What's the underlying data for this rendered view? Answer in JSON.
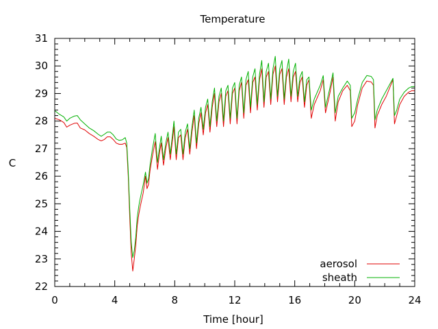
{
  "chart_data": {
    "type": "line",
    "title": "Temperature",
    "xlabel": "Time [hour]",
    "ylabel": "C",
    "xlim": [
      0,
      24
    ],
    "ylim": [
      22,
      31
    ],
    "x_ticks": [
      0,
      4,
      8,
      12,
      16,
      20,
      24
    ],
    "x_tick_labels": [
      "0",
      "4",
      "8",
      "12",
      "16",
      "20",
      "24"
    ],
    "y_ticks": [
      22,
      23,
      24,
      25,
      26,
      27,
      28,
      29,
      30,
      31
    ],
    "y_tick_labels": [
      "22",
      "23",
      "24",
      "25",
      "26",
      "27",
      "28",
      "29",
      "30",
      "31"
    ],
    "grid": false,
    "legend_position": "bottom-right",
    "series": [
      {
        "name": "aerosol",
        "color": "#e00000",
        "points": [
          [
            0.0,
            28.1
          ],
          [
            0.3,
            28.05
          ],
          [
            0.6,
            27.95
          ],
          [
            0.8,
            27.78
          ],
          [
            1.0,
            27.85
          ],
          [
            1.3,
            27.92
          ],
          [
            1.5,
            27.93
          ],
          [
            1.7,
            27.75
          ],
          [
            2.0,
            27.68
          ],
          [
            2.3,
            27.55
          ],
          [
            2.6,
            27.45
          ],
          [
            2.9,
            27.33
          ],
          [
            3.1,
            27.28
          ],
          [
            3.3,
            27.33
          ],
          [
            3.5,
            27.43
          ],
          [
            3.7,
            27.43
          ],
          [
            3.9,
            27.33
          ],
          [
            4.1,
            27.2
          ],
          [
            4.3,
            27.16
          ],
          [
            4.5,
            27.16
          ],
          [
            4.7,
            27.2
          ],
          [
            4.8,
            27.05
          ],
          [
            4.9,
            26.0
          ],
          [
            5.0,
            24.5
          ],
          [
            5.1,
            23.2
          ],
          [
            5.2,
            22.56
          ],
          [
            5.3,
            23.0
          ],
          [
            5.4,
            23.5
          ],
          [
            5.5,
            24.2
          ],
          [
            5.6,
            24.6
          ],
          [
            5.7,
            24.9
          ],
          [
            5.9,
            25.4
          ],
          [
            6.05,
            26.0
          ],
          [
            6.15,
            25.55
          ],
          [
            6.25,
            25.7
          ],
          [
            6.35,
            26.2
          ],
          [
            6.5,
            26.7
          ],
          [
            6.7,
            27.25
          ],
          [
            6.85,
            26.25
          ],
          [
            7.0,
            26.9
          ],
          [
            7.1,
            27.2
          ],
          [
            7.25,
            26.4
          ],
          [
            7.4,
            27.0
          ],
          [
            7.55,
            27.4
          ],
          [
            7.7,
            26.6
          ],
          [
            7.85,
            27.3
          ],
          [
            7.95,
            27.8
          ],
          [
            8.1,
            26.6
          ],
          [
            8.25,
            27.4
          ],
          [
            8.4,
            27.5
          ],
          [
            8.55,
            26.6
          ],
          [
            8.7,
            27.4
          ],
          [
            8.85,
            27.7
          ],
          [
            9.0,
            26.8
          ],
          [
            9.15,
            27.6
          ],
          [
            9.3,
            28.2
          ],
          [
            9.45,
            27.0
          ],
          [
            9.6,
            27.9
          ],
          [
            9.75,
            28.3
          ],
          [
            9.9,
            27.5
          ],
          [
            10.05,
            28.3
          ],
          [
            10.2,
            28.6
          ],
          [
            10.35,
            27.6
          ],
          [
            10.5,
            28.5
          ],
          [
            10.65,
            29.0
          ],
          [
            10.8,
            27.8
          ],
          [
            10.95,
            28.7
          ],
          [
            11.1,
            29.0
          ],
          [
            11.25,
            27.8
          ],
          [
            11.4,
            28.9
          ],
          [
            11.55,
            29.1
          ],
          [
            11.7,
            27.9
          ],
          [
            11.85,
            29.0
          ],
          [
            12.0,
            29.2
          ],
          [
            12.15,
            27.9
          ],
          [
            12.3,
            29.1
          ],
          [
            12.45,
            29.4
          ],
          [
            12.6,
            28.1
          ],
          [
            12.75,
            29.3
          ],
          [
            12.9,
            29.5
          ],
          [
            13.05,
            28.3
          ],
          [
            13.2,
            29.4
          ],
          [
            13.35,
            29.6
          ],
          [
            13.5,
            28.4
          ],
          [
            13.65,
            29.5
          ],
          [
            13.8,
            29.9
          ],
          [
            13.95,
            28.5
          ],
          [
            14.1,
            29.6
          ],
          [
            14.25,
            29.8
          ],
          [
            14.4,
            28.6
          ],
          [
            14.55,
            29.7
          ],
          [
            14.7,
            30.0
          ],
          [
            14.85,
            28.7
          ],
          [
            15.0,
            29.7
          ],
          [
            15.15,
            29.9
          ],
          [
            15.3,
            28.6
          ],
          [
            15.45,
            29.6
          ],
          [
            15.6,
            29.9
          ],
          [
            15.75,
            28.7
          ],
          [
            15.9,
            29.6
          ],
          [
            16.05,
            29.8
          ],
          [
            16.2,
            28.7
          ],
          [
            16.35,
            29.4
          ],
          [
            16.5,
            29.6
          ],
          [
            16.65,
            28.5
          ],
          [
            16.8,
            29.3
          ],
          [
            16.95,
            29.5
          ],
          [
            17.1,
            28.1
          ],
          [
            17.3,
            28.6
          ],
          [
            17.7,
            29.1
          ],
          [
            17.9,
            29.5
          ],
          [
            18.05,
            28.3
          ],
          [
            18.3,
            28.9
          ],
          [
            18.55,
            29.6
          ],
          [
            18.7,
            28.0
          ],
          [
            18.9,
            28.7
          ],
          [
            19.2,
            29.1
          ],
          [
            19.5,
            29.3
          ],
          [
            19.7,
            29.1
          ],
          [
            19.8,
            27.8
          ],
          [
            20.0,
            28.0
          ],
          [
            20.2,
            28.6
          ],
          [
            20.5,
            29.2
          ],
          [
            20.8,
            29.45
          ],
          [
            21.1,
            29.42
          ],
          [
            21.25,
            29.3
          ],
          [
            21.35,
            27.75
          ],
          [
            21.5,
            28.2
          ],
          [
            21.8,
            28.6
          ],
          [
            22.1,
            28.9
          ],
          [
            22.4,
            29.3
          ],
          [
            22.55,
            29.5
          ],
          [
            22.65,
            27.9
          ],
          [
            22.8,
            28.2
          ],
          [
            23.0,
            28.6
          ],
          [
            23.3,
            28.9
          ],
          [
            23.6,
            29.05
          ],
          [
            23.8,
            29.1
          ],
          [
            24.0,
            29.1
          ]
        ]
      },
      {
        "name": "sheath",
        "color": "#00b000",
        "points": [
          [
            0.0,
            28.38
          ],
          [
            0.3,
            28.25
          ],
          [
            0.6,
            28.15
          ],
          [
            0.8,
            28.0
          ],
          [
            1.0,
            28.1
          ],
          [
            1.3,
            28.18
          ],
          [
            1.5,
            28.2
          ],
          [
            1.7,
            28.05
          ],
          [
            2.0,
            27.9
          ],
          [
            2.3,
            27.75
          ],
          [
            2.6,
            27.65
          ],
          [
            2.9,
            27.52
          ],
          [
            3.1,
            27.45
          ],
          [
            3.3,
            27.52
          ],
          [
            3.5,
            27.6
          ],
          [
            3.7,
            27.6
          ],
          [
            3.9,
            27.5
          ],
          [
            4.1,
            27.35
          ],
          [
            4.3,
            27.3
          ],
          [
            4.5,
            27.32
          ],
          [
            4.7,
            27.4
          ],
          [
            4.8,
            27.2
          ],
          [
            4.9,
            26.2
          ],
          [
            5.0,
            24.8
          ],
          [
            5.1,
            23.6
          ],
          [
            5.2,
            23.05
          ],
          [
            5.3,
            23.3
          ],
          [
            5.4,
            23.8
          ],
          [
            5.5,
            24.5
          ],
          [
            5.6,
            24.9
          ],
          [
            5.7,
            25.2
          ],
          [
            5.9,
            25.7
          ],
          [
            6.05,
            26.15
          ],
          [
            6.15,
            25.75
          ],
          [
            6.25,
            25.9
          ],
          [
            6.35,
            26.4
          ],
          [
            6.5,
            26.95
          ],
          [
            6.7,
            27.55
          ],
          [
            6.85,
            26.5
          ],
          [
            7.0,
            27.1
          ],
          [
            7.1,
            27.45
          ],
          [
            7.25,
            26.6
          ],
          [
            7.4,
            27.2
          ],
          [
            7.55,
            27.6
          ],
          [
            7.7,
            26.8
          ],
          [
            7.85,
            27.5
          ],
          [
            7.95,
            28.0
          ],
          [
            8.1,
            26.8
          ],
          [
            8.25,
            27.6
          ],
          [
            8.4,
            27.7
          ],
          [
            8.55,
            26.8
          ],
          [
            8.7,
            27.6
          ],
          [
            8.85,
            27.9
          ],
          [
            9.0,
            27.0
          ],
          [
            9.15,
            27.8
          ],
          [
            9.3,
            28.4
          ],
          [
            9.45,
            27.2
          ],
          [
            9.6,
            28.1
          ],
          [
            9.75,
            28.5
          ],
          [
            9.9,
            27.7
          ],
          [
            10.05,
            28.5
          ],
          [
            10.2,
            28.8
          ],
          [
            10.35,
            27.8
          ],
          [
            10.5,
            28.7
          ],
          [
            10.65,
            29.2
          ],
          [
            10.8,
            28.0
          ],
          [
            10.95,
            28.9
          ],
          [
            11.1,
            29.2
          ],
          [
            11.25,
            28.0
          ],
          [
            11.4,
            29.1
          ],
          [
            11.55,
            29.3
          ],
          [
            11.7,
            28.1
          ],
          [
            11.85,
            29.2
          ],
          [
            12.0,
            29.4
          ],
          [
            12.15,
            28.1
          ],
          [
            12.3,
            29.3
          ],
          [
            12.45,
            29.6
          ],
          [
            12.6,
            28.3
          ],
          [
            12.75,
            29.5
          ],
          [
            12.9,
            29.8
          ],
          [
            13.05,
            28.5
          ],
          [
            13.2,
            29.6
          ],
          [
            13.35,
            29.9
          ],
          [
            13.5,
            28.6
          ],
          [
            13.65,
            29.7
          ],
          [
            13.8,
            30.2
          ],
          [
            13.95,
            28.7
          ],
          [
            14.1,
            29.8
          ],
          [
            14.25,
            30.1
          ],
          [
            14.4,
            28.8
          ],
          [
            14.55,
            29.9
          ],
          [
            14.7,
            30.35
          ],
          [
            14.85,
            28.9
          ],
          [
            15.0,
            29.9
          ],
          [
            15.15,
            30.2
          ],
          [
            15.3,
            28.8
          ],
          [
            15.45,
            29.8
          ],
          [
            15.6,
            30.25
          ],
          [
            15.75,
            28.9
          ],
          [
            15.9,
            29.8
          ],
          [
            16.05,
            30.1
          ],
          [
            16.2,
            28.9
          ],
          [
            16.35,
            29.6
          ],
          [
            16.5,
            29.8
          ],
          [
            16.65,
            28.7
          ],
          [
            16.8,
            29.5
          ],
          [
            16.95,
            29.6
          ],
          [
            17.1,
            28.4
          ],
          [
            17.3,
            28.8
          ],
          [
            17.7,
            29.3
          ],
          [
            17.9,
            29.65
          ],
          [
            18.05,
            28.5
          ],
          [
            18.3,
            29.1
          ],
          [
            18.55,
            29.75
          ],
          [
            18.7,
            28.3
          ],
          [
            18.9,
            28.9
          ],
          [
            19.2,
            29.2
          ],
          [
            19.5,
            29.45
          ],
          [
            19.7,
            29.3
          ],
          [
            19.8,
            28.1
          ],
          [
            20.0,
            28.3
          ],
          [
            20.2,
            28.8
          ],
          [
            20.5,
            29.4
          ],
          [
            20.8,
            29.65
          ],
          [
            21.1,
            29.62
          ],
          [
            21.25,
            29.5
          ],
          [
            21.35,
            28.05
          ],
          [
            21.5,
            28.4
          ],
          [
            21.8,
            28.8
          ],
          [
            22.1,
            29.1
          ],
          [
            22.4,
            29.4
          ],
          [
            22.55,
            29.55
          ],
          [
            22.65,
            28.2
          ],
          [
            22.8,
            28.4
          ],
          [
            23.0,
            28.8
          ],
          [
            23.3,
            29.05
          ],
          [
            23.6,
            29.2
          ],
          [
            23.8,
            29.25
          ],
          [
            24.0,
            29.25
          ]
        ]
      }
    ]
  }
}
